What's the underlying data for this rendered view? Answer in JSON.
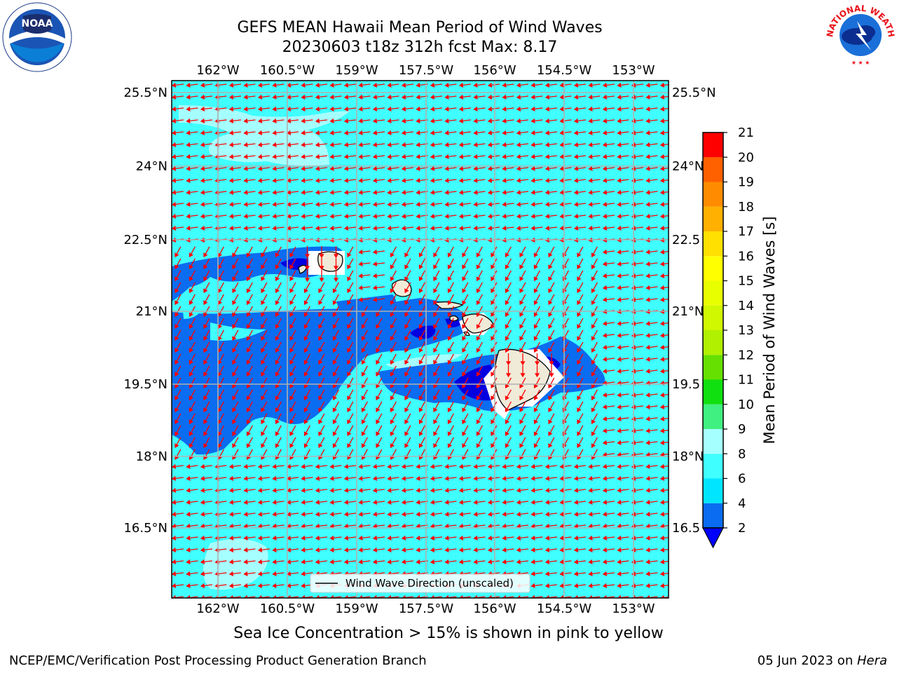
{
  "header": {
    "title_line1": "GEFS MEAN Hawaii Mean Period of Wind Waves",
    "title_line2": "20230603 t18z 312h fcst   Max: 8.17"
  },
  "logos": {
    "noaa_text": "NOAA",
    "noaa_ring_text": "NATIONAL OCEANIC AND ATMOSPHERIC ADMINISTRATION · U.S. DEPARTMENT OF COMMERCE",
    "nws_ring_text": "NATIONAL WEATHER SERVICE"
  },
  "map": {
    "lon_ticks": [
      "162°W",
      "160.5°W",
      "159°W",
      "157.5°W",
      "156°W",
      "154.5°W",
      "153°W"
    ],
    "lat_ticks_left": [
      "25.5°N",
      "24°N",
      "22.5°N",
      "21°N",
      "19.5°N",
      "18°N",
      "16.5°N"
    ],
    "lat_ticks_right": [
      "25.5°N",
      "24°N",
      "22.5",
      "21°N",
      "19.5",
      "18°N",
      "16.5"
    ],
    "legend_label": "Wind Wave Direction (unscaled)",
    "arrow_color": "#ff0000",
    "grid_color": "#b0b0b0"
  },
  "colorbar": {
    "label": "Mean Period of Wind Waves [s]",
    "ticks": [
      "2",
      "4",
      "6",
      "8",
      "9",
      "10",
      "11",
      "12",
      "13",
      "14",
      "15",
      "16",
      "17",
      "18",
      "19",
      "20",
      "21"
    ],
    "colors": [
      "#0a6cf0",
      "#00e5ff",
      "#40ffff",
      "#a6ffff",
      "#40f080",
      "#10e010",
      "#66e000",
      "#b0f000",
      "#d0f800",
      "#e8ff00",
      "#ffff00",
      "#ffe000",
      "#ffb000",
      "#ff8c00",
      "#ff6000",
      "#ff3000",
      "#ff0000"
    ],
    "under_color": "#0000ff"
  },
  "caption": "Sea Ice Concentration > 15% is shown in pink to yellow",
  "footer": {
    "left": "NCEP/EMC/Verification Post Processing Product Generation Branch",
    "date": "05 Jun 2023 on ",
    "host": "Hera"
  }
}
